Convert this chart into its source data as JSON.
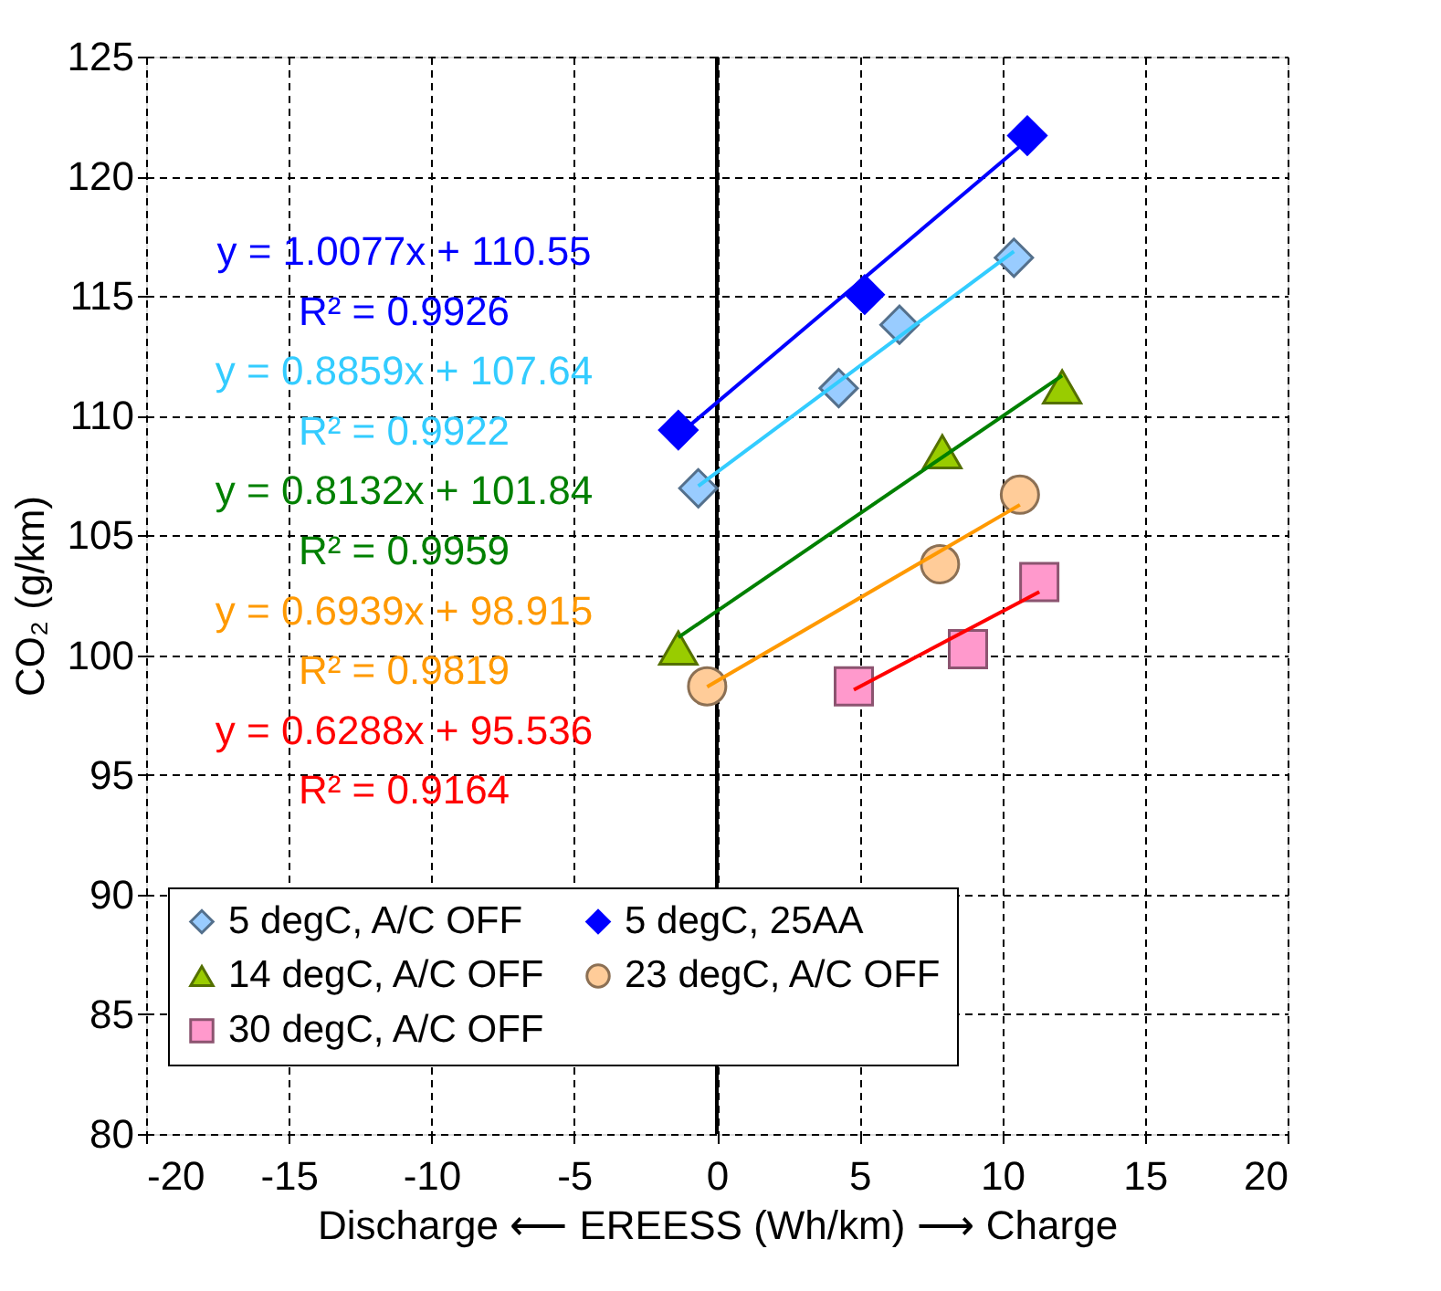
{
  "chart_data": {
    "type": "scatter",
    "xlabel": "Discharge ⟵ EREESS (Wh/km) ⟶ Charge",
    "ylabel": "CO₂ (g/km)",
    "xlim": [
      -20,
      20
    ],
    "xticks": [
      -20,
      -15,
      -10,
      -5,
      0,
      5,
      10,
      15,
      20
    ],
    "ylim": [
      80,
      125
    ],
    "yticks": [
      80,
      85,
      90,
      95,
      100,
      105,
      110,
      115,
      120,
      125
    ],
    "grid": true,
    "legend": "bottom",
    "ref_lines": [
      {
        "axis": "x",
        "value": 0,
        "color": "#000000",
        "line_style": "solid"
      }
    ],
    "series": [
      {
        "name": "5 degC, A/C OFF",
        "type": "scatter",
        "marker": "diamond",
        "color": "#99ccff",
        "x": [
          -0.65,
          4.27,
          6.4,
          10.41
        ],
        "values": [
          106.97,
          111.15,
          113.8,
          116.6
        ]
      },
      {
        "name": "5 degC, 25AA",
        "type": "scatter",
        "marker": "diamond",
        "color": "#0000ff",
        "x": [
          -1.35,
          5.18,
          10.88
        ],
        "values": [
          109.4,
          115.06,
          121.7
        ]
      },
      {
        "name": "14 degC, A/C OFF",
        "type": "scatter",
        "marker": "triangle",
        "color": "#99cc00",
        "x": [
          -1.35,
          7.9,
          12.1
        ],
        "values": [
          100.3,
          108.5,
          111.2
        ]
      },
      {
        "name": "23 degC, A/C OFF",
        "type": "scatter",
        "marker": "circle",
        "color": "#ffcc99",
        "x": [
          -0.34,
          7.82,
          10.62
        ],
        "values": [
          98.7,
          103.8,
          106.7
        ]
      },
      {
        "name": "30 degC, A/C OFF",
        "type": "scatter",
        "marker": "square",
        "color": "#ff99cc",
        "x": [
          4.8,
          8.8,
          11.3
        ],
        "values": [
          98.7,
          100.25,
          103.05
        ]
      },
      {
        "type": "line",
        "marker": "none",
        "line_style": "solid",
        "color": "#0000ff",
        "x": [
          -1.35,
          10.88
        ],
        "values": [
          109.19,
          121.51
        ]
      },
      {
        "type": "line",
        "marker": "none",
        "line_style": "solid",
        "color": "#33ccff",
        "x": [
          -0.65,
          10.41
        ],
        "values": [
          107.06,
          116.86
        ]
      },
      {
        "type": "line",
        "marker": "none",
        "line_style": "solid",
        "color": "#008000",
        "x": [
          -1.35,
          12.1
        ],
        "values": [
          100.74,
          111.68
        ]
      },
      {
        "type": "line",
        "marker": "none",
        "line_style": "solid",
        "color": "#ff9900",
        "x": [
          -0.34,
          10.62
        ],
        "values": [
          98.68,
          106.28
        ]
      },
      {
        "type": "line",
        "marker": "none",
        "line_style": "solid",
        "color": "#ff0000",
        "x": [
          4.8,
          11.3
        ],
        "values": [
          98.55,
          102.64
        ]
      }
    ],
    "annotations": [
      "y = 1.0077x + 110.55",
      "R² = 0.9926",
      "y = 0.8859x + 107.64",
      "R² = 0.9922",
      "y = 0.8132x + 101.84",
      "R² = 0.9959",
      "y = 0.6939x + 98.915",
      "R² = 0.9819",
      "y = 0.6288x + 95.536",
      "R² = 0.9164"
    ]
  }
}
